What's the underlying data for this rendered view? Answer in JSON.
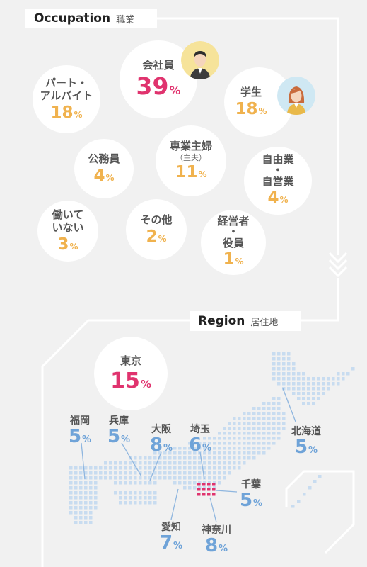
{
  "occupation_header": {
    "title_en": "Occupation",
    "title_jp": "職業"
  },
  "region_header": {
    "title_en": "Region",
    "title_jp": "居住地"
  },
  "colors": {
    "pink": "#e0336e",
    "orange": "#f0b24e",
    "blue": "#6fa3d8",
    "map_dot": "#c8dcf0",
    "tokyo_dot": "#e0336e"
  },
  "chart_data": [
    {
      "type": "bubble",
      "title": "Occupation 職業",
      "categories": [
        "会社員",
        "パート・アルバイト",
        "学生",
        "専業主婦（主夫）",
        "公務員",
        "自由業・自営業",
        "働いていない",
        "その他",
        "経営者・役員"
      ],
      "values": [
        39,
        18,
        18,
        11,
        4,
        4,
        3,
        2,
        1
      ],
      "unit": "%"
    },
    {
      "type": "map",
      "title": "Region 居住地",
      "categories": [
        "東京",
        "福岡",
        "兵庫",
        "大阪",
        "埼玉",
        "北海道",
        "千葉",
        "愛知",
        "神奈川"
      ],
      "values": [
        15,
        5,
        5,
        8,
        6,
        5,
        5,
        7,
        8
      ],
      "unit": "%"
    }
  ],
  "occupation": [
    {
      "label": "会社員",
      "sub": "",
      "value": "39",
      "unit": "%",
      "color": "pink",
      "avatar": "male-office-worker-icon"
    },
    {
      "label": "パート・\nアルバイト",
      "sub": "",
      "value": "18",
      "unit": "%",
      "color": "orange"
    },
    {
      "label": "学生",
      "sub": "",
      "value": "18",
      "unit": "%",
      "color": "orange",
      "avatar": "female-student-icon"
    },
    {
      "label": "専業主婦",
      "sub": "（主夫）",
      "value": "11",
      "unit": "%",
      "color": "orange"
    },
    {
      "label": "公務員",
      "sub": "",
      "value": "4",
      "unit": "%",
      "color": "orange"
    },
    {
      "label": "自由業\n・\n自営業",
      "sub": "",
      "value": "4",
      "unit": "%",
      "color": "orange"
    },
    {
      "label": "働いて\nいない",
      "sub": "",
      "value": "3",
      "unit": "%",
      "color": "orange"
    },
    {
      "label": "その他",
      "sub": "",
      "value": "2",
      "unit": "%",
      "color": "orange"
    },
    {
      "label": "経営者\n・\n役員",
      "sub": "",
      "value": "1",
      "unit": "%",
      "color": "orange"
    }
  ],
  "region": [
    {
      "label": "東京",
      "value": "15",
      "unit": "%",
      "color": "pink"
    },
    {
      "label": "福岡",
      "value": "5",
      "unit": "%",
      "color": "blue"
    },
    {
      "label": "兵庫",
      "value": "5",
      "unit": "%",
      "color": "blue"
    },
    {
      "label": "大阪",
      "value": "8",
      "unit": "%",
      "color": "blue"
    },
    {
      "label": "埼玉",
      "value": "6",
      "unit": "%",
      "color": "blue"
    },
    {
      "label": "北海道",
      "value": "5",
      "unit": "%",
      "color": "blue"
    },
    {
      "label": "千葉",
      "value": "5",
      "unit": "%",
      "color": "blue"
    },
    {
      "label": "愛知",
      "value": "7",
      "unit": "%",
      "color": "blue"
    },
    {
      "label": "神奈川",
      "value": "8",
      "unit": "%",
      "color": "blue"
    }
  ]
}
